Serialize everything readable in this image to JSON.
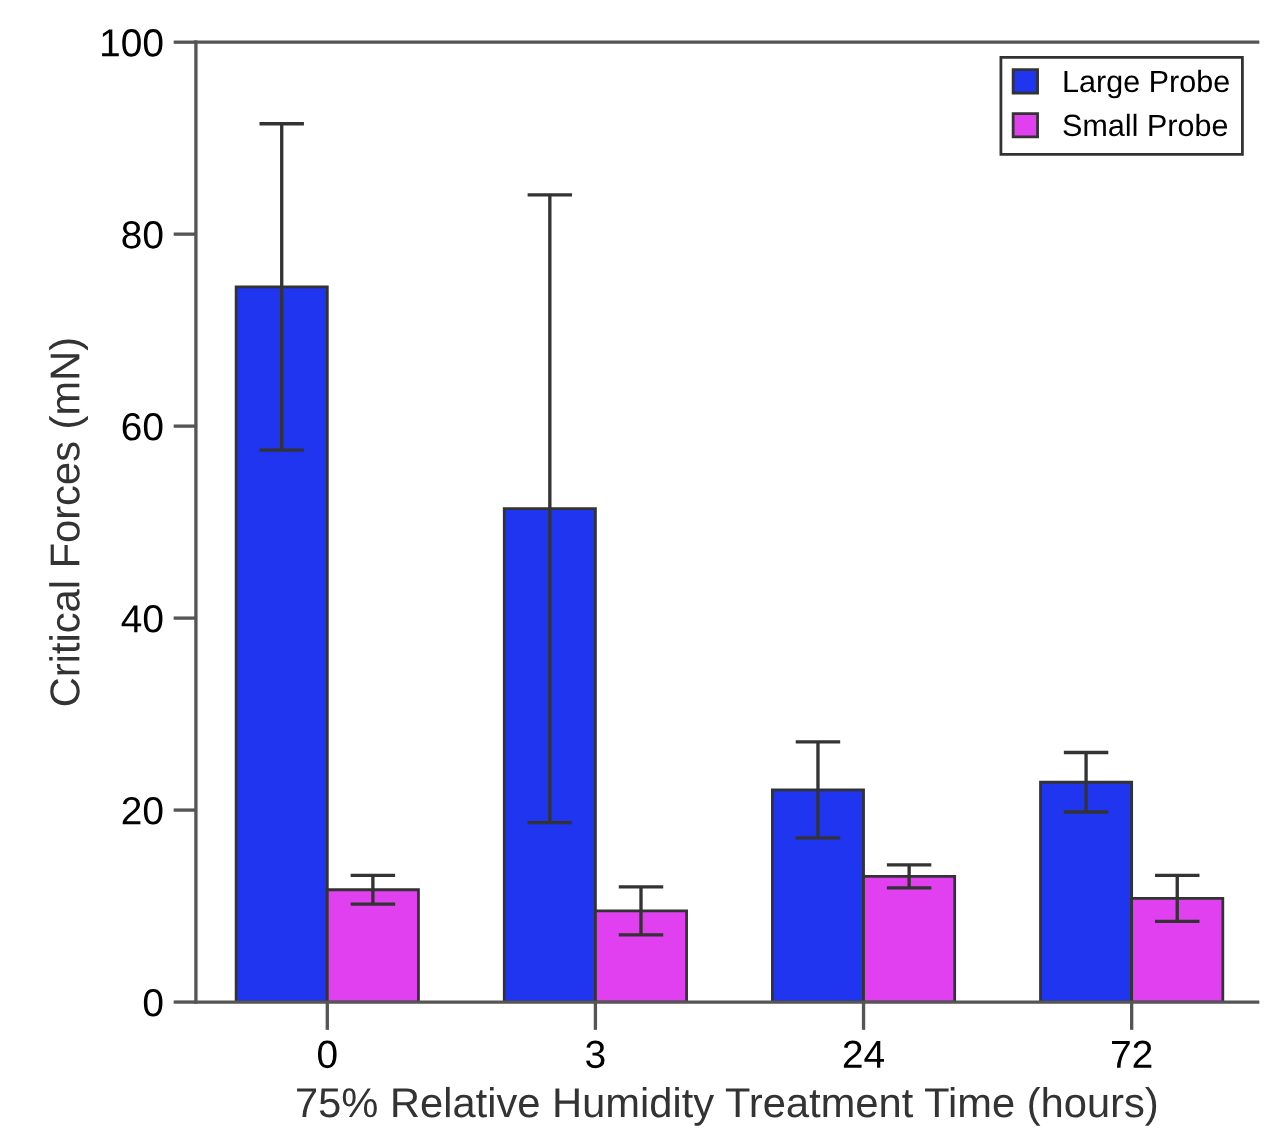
{
  "chart_data": {
    "type": "bar",
    "xlabel": "75% Relative Humidity Treatment Time (hours)",
    "ylabel": "Critical Forces (mN)",
    "categories": [
      "0",
      "3",
      "24",
      "72"
    ],
    "series": [
      {
        "name": "Large Probe",
        "color": "#1f35f0",
        "values": [
          74.5,
          51.4,
          22.1,
          22.9
        ],
        "errors": [
          17,
          32.7,
          5,
          3.1
        ]
      },
      {
        "name": "Small Probe",
        "color": "#e040f0",
        "values": [
          11.7,
          9.5,
          13.1,
          10.8
        ],
        "errors": [
          1.5,
          2.5,
          1.2,
          2.4
        ]
      }
    ],
    "ylim": [
      0,
      100
    ],
    "yticks": [
      0,
      20,
      40,
      60,
      80,
      100
    ],
    "grid": false,
    "legend": "top right"
  }
}
